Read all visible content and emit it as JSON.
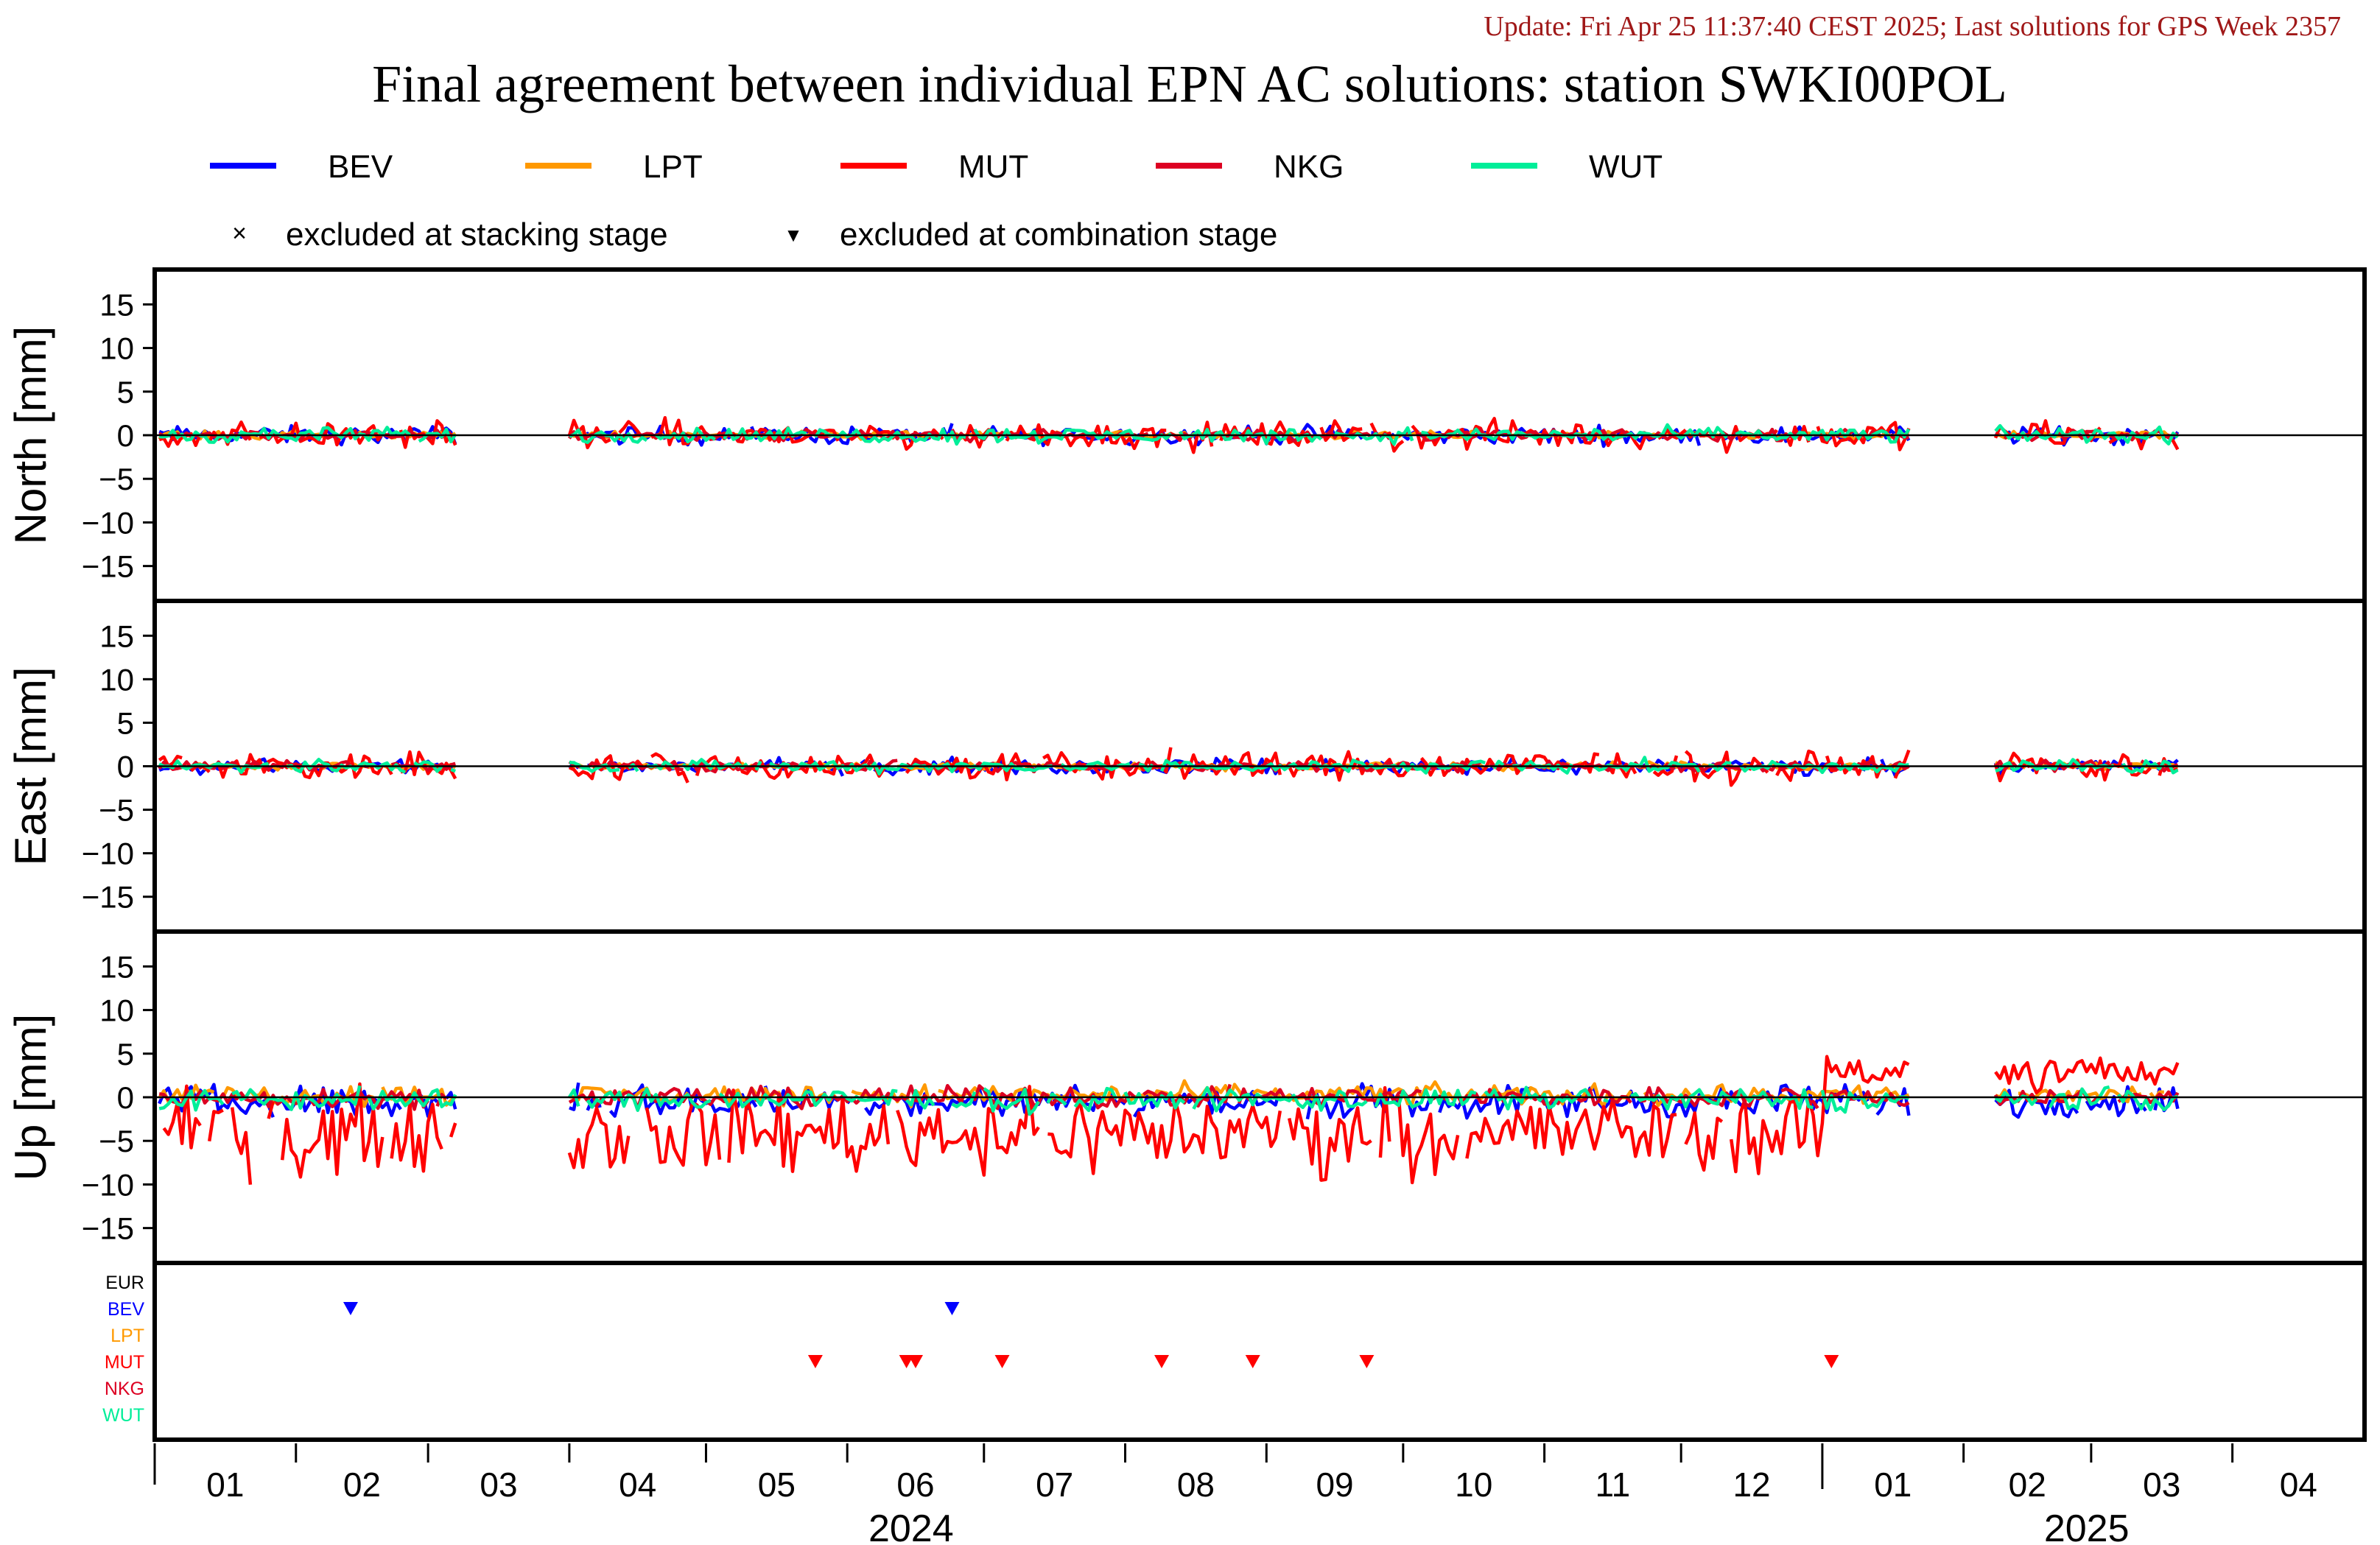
{
  "update_text": "Update: Fri Apr 25 11:37:40 CEST 2025; Last solutions for GPS Week 2357",
  "title": "Final agreement between individual EPN AC solutions: station SWKI00POL",
  "legend": {
    "series": [
      {
        "name": "BEV",
        "color": "#0000ff"
      },
      {
        "name": "LPT",
        "color": "#ff9900"
      },
      {
        "name": "MUT",
        "color": "#ff0000"
      },
      {
        "name": "NKG",
        "color": "#dd0022"
      },
      {
        "name": "WUT",
        "color": "#00ee99"
      }
    ],
    "markers": [
      {
        "symbol": "×",
        "label": "excluded at stacking stage"
      },
      {
        "symbol": "▼",
        "label": "excluded at combination stage"
      }
    ]
  },
  "chart_data": {
    "type": "line",
    "x_unit": "date",
    "xlim": [
      "2024-01-01",
      "2025-04-30"
    ],
    "month_ticks": [
      "01",
      "02",
      "03",
      "04",
      "05",
      "06",
      "07",
      "08",
      "09",
      "10",
      "11",
      "12",
      "01",
      "02",
      "03",
      "04"
    ],
    "year_labels": [
      {
        "year": "2024",
        "at": "2024-06-15"
      },
      {
        "year": "2025",
        "at": "2025-02-28"
      }
    ],
    "data_gaps": [
      [
        "2024-03-08",
        "2024-03-31"
      ],
      [
        "2025-01-21",
        "2025-02-07"
      ]
    ],
    "panels": [
      {
        "ylabel": "North [mm]",
        "ylim": [
          -19,
          19
        ],
        "yticks": [
          -15,
          -10,
          -5,
          0,
          5,
          10,
          15
        ],
        "series": [
          {
            "name": "BEV",
            "color": "#0000ff",
            "amplitude_mm": 0.7,
            "offset_mm": 0.0
          },
          {
            "name": "LPT",
            "color": "#ff9900",
            "amplitude_mm": 0.3,
            "offset_mm": 0.0
          },
          {
            "name": "MUT",
            "color": "#ff0000",
            "amplitude_mm": 1.1,
            "offset_mm": 0.0
          },
          {
            "name": "NKG",
            "color": "#dd0022",
            "amplitude_mm": 0.4,
            "offset_mm": 0.0
          },
          {
            "name": "WUT",
            "color": "#00ee99",
            "amplitude_mm": 0.6,
            "offset_mm": 0.0
          }
        ]
      },
      {
        "ylabel": "East [mm]",
        "ylim": [
          -19,
          19
        ],
        "yticks": [
          -15,
          -10,
          -5,
          0,
          5,
          10,
          15
        ],
        "series": [
          {
            "name": "BEV",
            "color": "#0000ff",
            "amplitude_mm": 0.6,
            "offset_mm": 0.0
          },
          {
            "name": "LPT",
            "color": "#ff9900",
            "amplitude_mm": 0.3,
            "offset_mm": 0.0
          },
          {
            "name": "MUT",
            "color": "#ff0000",
            "amplitude_mm": 1.2,
            "offset_mm": 0.0
          },
          {
            "name": "NKG",
            "color": "#dd0022",
            "amplitude_mm": 0.4,
            "offset_mm": 0.0
          },
          {
            "name": "WUT",
            "color": "#00ee99",
            "amplitude_mm": 0.5,
            "offset_mm": 0.0
          }
        ]
      },
      {
        "ylabel": "Up [mm]",
        "ylim": [
          -19,
          19
        ],
        "yticks": [
          -15,
          -10,
          -5,
          0,
          5,
          10,
          15
        ],
        "series": [
          {
            "name": "BEV",
            "color": "#0000ff",
            "amplitude_mm": 1.3,
            "offset_mm": -0.5
          },
          {
            "name": "LPT",
            "color": "#ff9900",
            "amplitude_mm": 0.8,
            "offset_mm": 0.3
          },
          {
            "name": "MUT",
            "color": "#ff0000",
            "amplitude_mm": 3.2,
            "offset_mm": -4.0
          },
          {
            "name": "NKG",
            "color": "#dd0022",
            "amplitude_mm": 0.8,
            "offset_mm": 0.0
          },
          {
            "name": "WUT",
            "color": "#00ee99",
            "amplitude_mm": 0.9,
            "offset_mm": -0.3
          }
        ]
      }
    ],
    "exclusion_panel": {
      "rows": [
        {
          "name": "EUR",
          "color": "#000000"
        },
        {
          "name": "BEV",
          "color": "#0000ff"
        },
        {
          "name": "LPT",
          "color": "#ff9900"
        },
        {
          "name": "MUT",
          "color": "#ff0000"
        },
        {
          "name": "NKG",
          "color": "#dd0022"
        },
        {
          "name": "WUT",
          "color": "#00ee99"
        }
      ],
      "combination_exclusions": [
        {
          "ac": "BEV",
          "date": "2024-02-13"
        },
        {
          "ac": "BEV",
          "date": "2024-06-24"
        },
        {
          "ac": "MUT",
          "date": "2024-05-25"
        },
        {
          "ac": "MUT",
          "date": "2024-06-14"
        },
        {
          "ac": "MUT",
          "date": "2024-06-16"
        },
        {
          "ac": "MUT",
          "date": "2024-07-05"
        },
        {
          "ac": "MUT",
          "date": "2024-08-09"
        },
        {
          "ac": "MUT",
          "date": "2024-08-29"
        },
        {
          "ac": "MUT",
          "date": "2024-09-23"
        },
        {
          "ac": "MUT",
          "date": "2025-01-03"
        }
      ]
    }
  }
}
